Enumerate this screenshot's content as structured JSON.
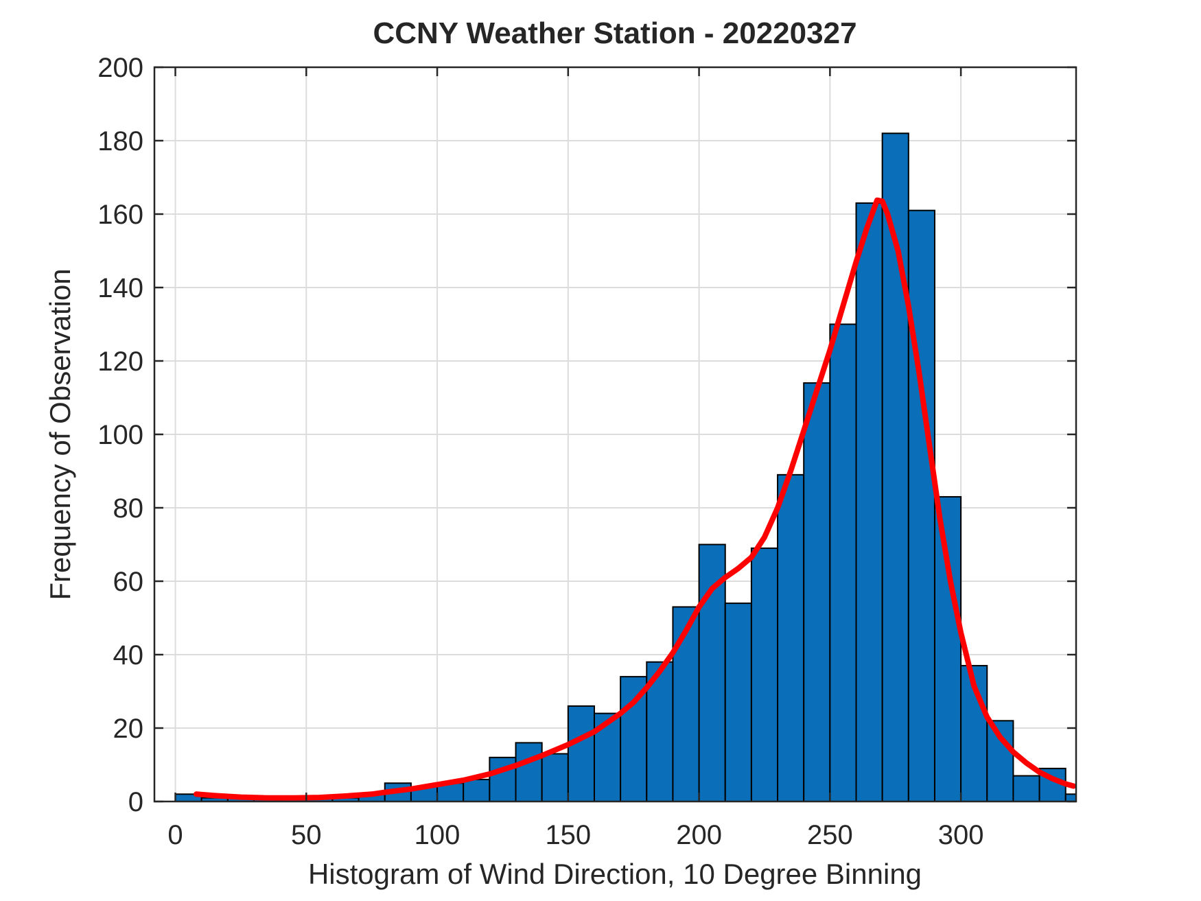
{
  "figure": {
    "title": "CCNY Weather Station - 20220327",
    "xlabel": "Histogram of Wind Direction, 10 Degree Binning",
    "ylabel": "Frequency of Observation",
    "background": "#ffffff"
  },
  "chart_data": {
    "type": "bar",
    "subtype": "histogram-with-fit-curve",
    "title": "CCNY Weather Station - 20220327",
    "xlabel": "Histogram of Wind Direction, 10 Degree Binning",
    "ylabel": "Frequency of Observation",
    "bin_width": 10,
    "bin_left_edges": [
      0,
      10,
      20,
      30,
      40,
      50,
      60,
      70,
      80,
      90,
      100,
      110,
      120,
      130,
      140,
      150,
      160,
      170,
      180,
      190,
      200,
      210,
      220,
      230,
      240,
      250,
      260,
      270,
      280,
      290,
      300,
      310,
      320,
      330,
      340
    ],
    "counts": [
      2,
      1,
      1,
      1,
      1,
      1,
      1,
      2,
      5,
      4,
      5,
      6,
      12,
      16,
      13,
      26,
      24,
      34,
      38,
      53,
      70,
      54,
      69,
      89,
      114,
      130,
      163,
      182,
      161,
      83,
      37,
      22,
      7,
      9,
      2
    ],
    "x_ticks": [
      0,
      50,
      100,
      150,
      200,
      250,
      300
    ],
    "y_ticks": [
      0,
      20,
      40,
      60,
      80,
      100,
      120,
      140,
      160,
      180,
      200
    ],
    "xlim": [
      -8,
      344
    ],
    "ylim": [
      0,
      200
    ],
    "grid": true,
    "legend": "none",
    "fit_curve": {
      "name": "kernel-density-fit",
      "color": "#ff0000",
      "peak": {
        "x": 268,
        "y": 164
      },
      "points": [
        [
          8,
          2
        ],
        [
          15,
          1.6
        ],
        [
          25,
          1.2
        ],
        [
          35,
          1.0
        ],
        [
          45,
          1.0
        ],
        [
          55,
          1.1
        ],
        [
          65,
          1.5
        ],
        [
          75,
          2.0
        ],
        [
          80,
          2.5
        ],
        [
          90,
          3.4
        ],
        [
          100,
          4.6
        ],
        [
          110,
          5.8
        ],
        [
          120,
          7.5
        ],
        [
          130,
          9.8
        ],
        [
          140,
          12.5
        ],
        [
          150,
          15.5
        ],
        [
          160,
          19
        ],
        [
          170,
          24
        ],
        [
          175,
          27
        ],
        [
          180,
          31
        ],
        [
          185,
          35.5
        ],
        [
          190,
          40.5
        ],
        [
          195,
          46.5
        ],
        [
          200,
          53
        ],
        [
          205,
          58
        ],
        [
          210,
          61
        ],
        [
          215,
          63.5
        ],
        [
          220,
          66.5
        ],
        [
          225,
          72
        ],
        [
          230,
          80
        ],
        [
          235,
          90
        ],
        [
          240,
          101
        ],
        [
          245,
          112
        ],
        [
          250,
          123
        ],
        [
          255,
          135
        ],
        [
          260,
          147
        ],
        [
          264,
          156
        ],
        [
          268,
          163.8
        ],
        [
          270,
          163.5
        ],
        [
          272,
          160
        ],
        [
          276,
          150
        ],
        [
          280,
          135
        ],
        [
          284,
          117
        ],
        [
          288,
          97
        ],
        [
          292,
          77
        ],
        [
          296,
          60
        ],
        [
          300,
          46
        ],
        [
          305,
          31.5
        ],
        [
          310,
          23
        ],
        [
          315,
          17.5
        ],
        [
          320,
          13.5
        ],
        [
          325,
          10.5
        ],
        [
          330,
          8
        ],
        [
          335,
          6.2
        ],
        [
          340,
          4.8
        ],
        [
          343,
          4.2
        ]
      ]
    },
    "colors": {
      "bar_fill": "#0a6fb8",
      "bar_edge": "#000000",
      "curve": "#ff0000",
      "grid": "#dcdcdc",
      "axis": "#262626",
      "text": "#262626"
    }
  }
}
